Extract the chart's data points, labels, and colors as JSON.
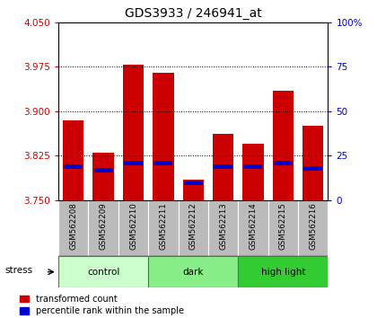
{
  "title": "GDS3933 / 246941_at",
  "samples": [
    "GSM562208",
    "GSM562209",
    "GSM562210",
    "GSM562211",
    "GSM562212",
    "GSM562213",
    "GSM562214",
    "GSM562215",
    "GSM562216"
  ],
  "red_values": [
    3.885,
    3.83,
    3.978,
    3.965,
    3.785,
    3.862,
    3.845,
    3.935,
    3.875
  ],
  "blue_percentiles": [
    19,
    17,
    21,
    21,
    10,
    19,
    19,
    21,
    18
  ],
  "baseline": 3.75,
  "ylim_left": [
    3.75,
    4.05
  ],
  "ylim_right": [
    0,
    100
  ],
  "yticks_left": [
    3.75,
    3.825,
    3.9,
    3.975,
    4.05
  ],
  "yticks_right": [
    0,
    25,
    50,
    75,
    100
  ],
  "ytick_labels_right": [
    "0",
    "25",
    "50",
    "75",
    "100%"
  ],
  "grid_values": [
    3.825,
    3.9,
    3.975
  ],
  "groups": [
    {
      "label": "control",
      "indices": [
        0,
        1,
        2
      ],
      "color": "#ccffcc"
    },
    {
      "label": "dark",
      "indices": [
        3,
        4,
        5
      ],
      "color": "#88ee88"
    },
    {
      "label": "high light",
      "indices": [
        6,
        7,
        8
      ],
      "color": "#33cc33"
    }
  ],
  "stress_label": "stress",
  "bar_color": "#cc0000",
  "marker_color": "#0000cc",
  "bar_width": 0.7,
  "ylabel_left_color": "#cc0000",
  "ylabel_right_color": "#0000cc",
  "tick_area_color": "#bbbbbb"
}
